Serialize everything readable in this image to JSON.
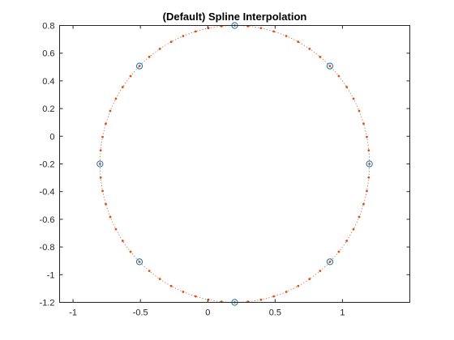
{
  "chart_data": {
    "type": "scatter",
    "title": "(Default) Spline Interpolation",
    "xlabel": "",
    "ylabel": "",
    "xlim": [
      -1.1,
      1.5
    ],
    "ylim": [
      -1.2,
      0.8
    ],
    "xticks": [
      -1,
      -0.5,
      0,
      0.5,
      1
    ],
    "xtick_labels": [
      "-1",
      "-0.5",
      "0",
      "0.5",
      "1"
    ],
    "yticks": [
      -1.2,
      -1,
      -0.8,
      -0.6,
      -0.4,
      -0.2,
      0,
      0.2,
      0.4,
      0.6,
      0.8
    ],
    "ytick_labels": [
      "-1.2",
      "-1",
      "-0.8",
      "-0.6",
      "-0.4",
      "-0.2",
      "0",
      "0.2",
      "0.4",
      "0.6",
      "0.8"
    ],
    "grid": false,
    "box": true,
    "series": [
      {
        "marker": "circle",
        "line": "none",
        "color": "#0072BD",
        "x": [
          0.2,
          0.907,
          1.2,
          0.907,
          0.2,
          -0.507,
          -0.8,
          -0.507
        ],
        "y": [
          0.8,
          0.507,
          -0.2,
          -0.907,
          -1.2,
          -0.907,
          -0.2,
          0.507
        ]
      },
      {
        "marker": "dot",
        "line": "dotted",
        "color": "#D95319",
        "curve": "circle",
        "center": [
          0.2,
          -0.2
        ],
        "radius": 1.0,
        "points_per_segment": 8
      }
    ]
  }
}
